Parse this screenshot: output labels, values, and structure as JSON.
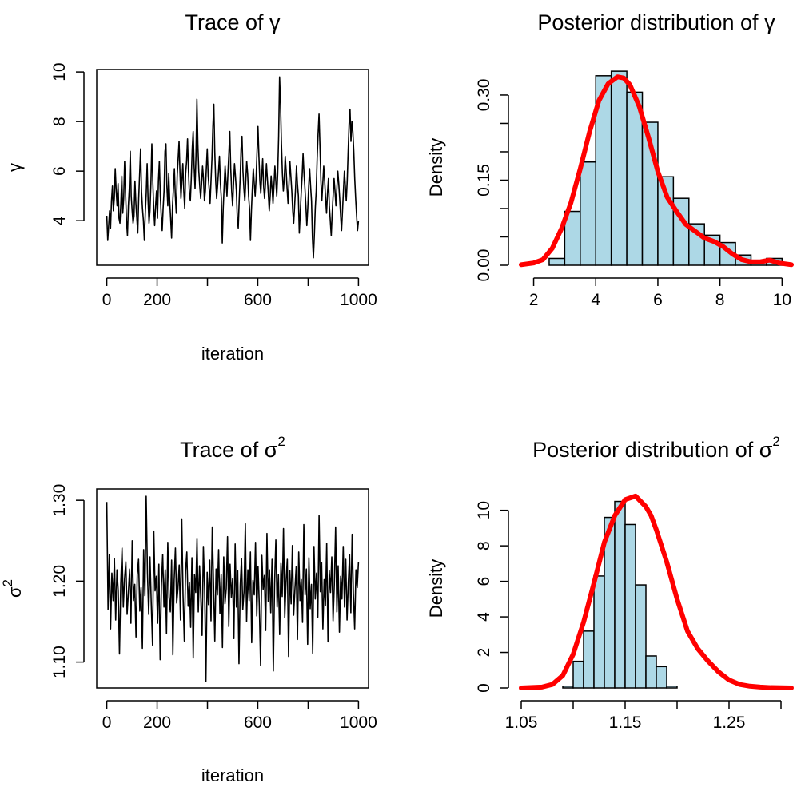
{
  "chart_data": [
    {
      "id": "trace-gamma",
      "type": "line",
      "title": "Trace of ",
      "title_symbol": "γ",
      "title_sup": "",
      "xlabel": "iteration",
      "ylabel": "γ",
      "ylabel_sup": "",
      "xlim": [
        -40,
        1040
      ],
      "ylim": [
        2.2,
        10.1
      ],
      "xticks": [
        0,
        200,
        400,
        600,
        800,
        1000
      ],
      "xtick_labels": [
        "0",
        "200",
        "",
        "600",
        "",
        "1000"
      ],
      "yticks": [
        4,
        6,
        8,
        10
      ],
      "ytick_labels": [
        "4",
        "6",
        "8",
        "10"
      ],
      "line_color": "#000000",
      "series": [
        {
          "values": [
            4.2,
            3.2,
            3.8,
            4.4,
            3.7,
            4.8,
            5.4,
            4.4,
            4.9,
            6.1,
            5.2,
            4.6,
            5.5,
            4.1,
            3.9,
            4.7,
            5.8,
            4.3,
            4.9,
            6.4,
            5.1,
            4.0,
            3.4,
            4.6,
            5.3,
            6.8,
            5.0,
            4.4,
            3.9,
            4.2,
            5.6,
            4.7,
            4.1,
            3.5,
            4.9,
            5.9,
            6.9,
            5.2,
            4.5,
            4.0,
            3.2,
            4.3,
            5.1,
            6.3,
            4.8,
            3.9,
            4.4,
            5.5,
            7.1,
            5.6,
            4.5,
            3.8,
            4.6,
            5.2,
            4.1,
            5.6,
            6.4,
            5.0,
            4.2,
            3.6,
            4.5,
            5.2,
            6.8,
            7.1,
            5.4,
            4.6,
            5.9,
            4.8,
            4.1,
            3.3,
            4.6,
            5.3,
            6.1,
            5.0,
            4.3,
            5.8,
            6.5,
            7.2,
            5.9,
            4.9,
            5.6,
            6.3,
            5.2,
            4.5,
            5.9,
            6.4,
            7.3,
            6.0,
            5.1,
            4.8,
            5.7,
            6.9,
            7.6,
            6.2,
            5.3,
            6.6,
            8.9,
            7.1,
            6.0,
            5.4,
            4.9,
            5.5,
            6.2,
            5.7,
            4.8,
            5.2,
            6.1,
            6.9,
            5.8,
            5.3,
            4.7,
            5.6,
            6.5,
            7.8,
            8.7,
            6.8,
            5.6,
            4.9,
            5.4,
            6.0,
            6.6,
            5.5,
            4.9,
            3.1,
            4.5,
            5.4,
            6.2,
            5.6,
            5.0,
            5.9,
            6.7,
            7.6,
            6.1,
            5.2,
            4.6,
            5.5,
            6.3,
            5.8,
            5.2,
            4.1,
            3.7,
            4.8,
            5.7,
            6.9,
            7.4,
            6.0,
            5.3,
            4.8,
            5.6,
            6.4,
            5.9,
            5.0,
            4.5,
            3.2,
            4.4,
            5.3,
            6.1,
            5.5,
            5.0,
            5.7,
            6.8,
            7.8,
            6.6,
            5.6,
            5.1,
            5.8,
            6.5,
            5.4,
            4.9,
            5.5,
            6.3,
            5.7,
            5.1,
            4.4,
            5.0,
            5.8,
            5.3,
            4.7,
            5.4,
            6.2,
            5.6,
            5.0,
            5.9,
            7.4,
            9.8,
            8.7,
            7.1,
            5.9,
            5.2,
            5.7,
            6.6,
            6.0,
            5.3,
            4.7,
            5.5,
            6.4,
            5.8,
            5.2,
            4.4,
            3.9,
            4.6,
            5.3,
            6.2,
            5.5,
            5.0,
            3.5,
            4.3,
            5.1,
            5.8,
            6.7,
            5.9,
            5.3,
            4.6,
            3.8,
            4.5,
            5.4,
            6.1,
            5.4,
            4.8,
            3.3,
            2.5,
            3.4,
            4.5,
            5.2,
            6.5,
            7.5,
            8.3,
            7.0,
            5.6,
            4.8,
            5.5,
            6.2,
            5.6,
            4.9,
            4.3,
            5.1,
            5.7,
            4.6,
            4.0,
            3.4,
            4.3,
            5.0,
            5.7,
            5.2,
            4.6,
            5.3,
            6.0,
            5.5,
            4.9,
            4.2,
            3.6,
            4.4,
            5.2,
            6.0,
            5.4,
            4.8,
            5.6,
            6.8,
            7.9,
            8.5,
            7.2,
            8.0,
            7.6,
            6.8,
            5.7,
            4.9,
            4.2,
            3.6,
            4.0
          ]
        }
      ]
    },
    {
      "id": "posterior-gamma",
      "type": "bar",
      "title": "Posterior distribution of ",
      "title_symbol": "γ",
      "title_sup": "",
      "xlabel": "",
      "ylabel": "Density",
      "xlim": [
        1.6,
        10.3
      ],
      "ylim": [
        0,
        0.345
      ],
      "xticks": [
        2,
        4,
        6,
        8,
        10
      ],
      "xtick_labels": [
        "2",
        "4",
        "6",
        "8",
        "10"
      ],
      "yticks": [
        0,
        0.05,
        0.1,
        0.15,
        0.2,
        0.25,
        0.3
      ],
      "ytick_labels": [
        "0.00",
        "",
        "",
        "0.15",
        "",
        "",
        "0.30"
      ],
      "bar_fill": "#add8e6",
      "curve_color": "#ff0000",
      "bins": [
        {
          "x0": 2.5,
          "x1": 3.0,
          "density": 0.012
        },
        {
          "x0": 3.0,
          "x1": 3.5,
          "density": 0.095
        },
        {
          "x0": 3.5,
          "x1": 4.0,
          "density": 0.182
        },
        {
          "x0": 4.0,
          "x1": 4.5,
          "density": 0.334
        },
        {
          "x0": 4.5,
          "x1": 5.0,
          "density": 0.342
        },
        {
          "x0": 5.0,
          "x1": 5.5,
          "density": 0.305
        },
        {
          "x0": 5.5,
          "x1": 6.0,
          "density": 0.252
        },
        {
          "x0": 6.0,
          "x1": 6.5,
          "density": 0.156
        },
        {
          "x0": 6.5,
          "x1": 7.0,
          "density": 0.118
        },
        {
          "x0": 7.0,
          "x1": 7.5,
          "density": 0.073
        },
        {
          "x0": 7.5,
          "x1": 8.0,
          "density": 0.053
        },
        {
          "x0": 8.0,
          "x1": 8.5,
          "density": 0.04
        },
        {
          "x0": 8.5,
          "x1": 9.0,
          "density": 0.018
        },
        {
          "x0": 9.0,
          "x1": 9.5,
          "density": 0.005
        },
        {
          "x0": 9.5,
          "x1": 10.0,
          "density": 0.012
        }
      ],
      "density_curve": {
        "x": [
          1.6,
          2.0,
          2.3,
          2.6,
          2.9,
          3.2,
          3.5,
          3.8,
          4.1,
          4.4,
          4.7,
          4.9,
          5.1,
          5.4,
          5.7,
          6.0,
          6.3,
          6.6,
          6.9,
          7.2,
          7.5,
          7.8,
          8.1,
          8.4,
          8.7,
          9.0,
          9.3,
          9.6,
          9.9,
          10.3
        ],
        "y": [
          0.001,
          0.004,
          0.01,
          0.03,
          0.065,
          0.11,
          0.17,
          0.235,
          0.29,
          0.32,
          0.332,
          0.33,
          0.318,
          0.28,
          0.225,
          0.165,
          0.12,
          0.095,
          0.072,
          0.06,
          0.048,
          0.042,
          0.033,
          0.02,
          0.01,
          0.006,
          0.006,
          0.009,
          0.004,
          0.001
        ]
      }
    },
    {
      "id": "trace-sigma2",
      "type": "line",
      "title": "Trace of ",
      "title_symbol": "σ",
      "title_sup": "2",
      "xlabel": "iteration",
      "ylabel": "σ",
      "ylabel_sup": "2",
      "xlim": [
        -40,
        1040
      ],
      "ylim": [
        1.068,
        1.314
      ],
      "xticks": [
        0,
        200,
        400,
        600,
        800,
        1000
      ],
      "xtick_labels": [
        "0",
        "200",
        "",
        "600",
        "",
        "1000"
      ],
      "yticks": [
        1.1,
        1.2,
        1.3
      ],
      "ytick_labels": [
        "1.10",
        "1.20",
        "1.30"
      ],
      "line_color": "#000000",
      "series": [
        {
          "values": [
            1.298,
            1.165,
            1.233,
            1.141,
            1.21,
            1.176,
            1.228,
            1.152,
            1.214,
            1.188,
            1.11,
            1.197,
            1.241,
            1.168,
            1.203,
            1.224,
            1.159,
            1.186,
            1.215,
            1.148,
            1.25,
            1.176,
            1.196,
            1.131,
            1.208,
            1.227,
            1.163,
            1.192,
            1.117,
            1.239,
            1.182,
            1.305,
            1.21,
            1.159,
            1.23,
            1.172,
            1.121,
            1.262,
            1.188,
            1.206,
            1.148,
            1.221,
            1.103,
            1.195,
            1.233,
            1.168,
            1.214,
            1.135,
            1.248,
            1.18,
            1.162,
            1.226,
            1.109,
            1.201,
            1.241,
            1.173,
            1.191,
            1.22,
            1.152,
            1.277,
            1.183,
            1.126,
            1.212,
            1.236,
            1.169,
            1.198,
            1.143,
            1.229,
            1.105,
            1.208,
            1.186,
            1.253,
            1.162,
            1.219,
            1.178,
            1.133,
            1.243,
            1.19,
            1.076,
            1.211,
            1.171,
            1.226,
            1.151,
            1.267,
            1.196,
            1.126,
            1.215,
            1.183,
            1.239,
            1.16,
            1.208,
            1.118,
            1.23,
            1.172,
            1.191,
            1.255,
            1.144,
            1.221,
            1.18,
            1.203,
            1.129,
            1.246,
            1.168,
            1.213,
            1.098,
            1.195,
            1.228,
            1.165,
            1.188,
            1.271,
            1.15,
            1.214,
            1.176,
            1.236,
            1.124,
            1.201,
            1.183,
            1.248,
            1.157,
            1.218,
            1.17,
            1.096,
            1.232,
            1.19,
            1.207,
            1.139,
            1.259,
            1.175,
            1.214,
            1.161,
            1.227,
            1.089,
            1.196,
            1.251,
            1.168,
            1.208,
            1.134,
            1.222,
            1.181,
            1.265,
            1.155,
            1.199,
            1.227,
            1.107,
            1.213,
            1.172,
            1.244,
            1.158,
            1.19,
            1.218,
            1.128,
            1.236,
            1.176,
            1.202,
            1.149,
            1.27,
            1.183,
            1.215,
            1.122,
            1.229,
            1.166,
            1.196,
            1.111,
            1.243,
            1.178,
            1.21,
            1.155,
            1.281,
            1.187,
            1.223,
            1.141,
            1.202,
            1.17,
            1.247,
            1.125,
            1.213,
            1.186,
            1.23,
            1.151,
            1.196,
            1.267,
            1.162,
            1.219,
            1.137,
            1.206,
            1.178,
            1.243,
            1.168,
            1.227,
            1.152,
            1.198,
            1.233,
            1.161,
            1.258,
            1.184,
            1.141,
            1.214,
            1.192,
            1.224
          ]
        }
      ]
    },
    {
      "id": "posterior-sigma2",
      "type": "bar",
      "title": "Posterior distribution of ",
      "title_symbol": "σ",
      "title_sup": "2",
      "xlabel": "",
      "ylabel": "Density",
      "xlim": [
        1.05,
        1.31
      ],
      "ylim": [
        0,
        11.2
      ],
      "xticks": [
        1.05,
        1.1,
        1.15,
        1.2,
        1.25,
        1.3
      ],
      "xtick_labels": [
        "1.05",
        "",
        "1.15",
        "",
        "1.25",
        ""
      ],
      "yticks": [
        0,
        2,
        4,
        6,
        8,
        10
      ],
      "ytick_labels": [
        "0",
        "2",
        "4",
        "6",
        "8",
        "10"
      ],
      "bar_fill": "#add8e6",
      "curve_color": "#ff0000",
      "bins": [
        {
          "x0": 1.09,
          "x1": 1.1,
          "density": 0.1
        },
        {
          "x0": 1.1,
          "x1": 1.11,
          "density": 1.5
        },
        {
          "x0": 1.11,
          "x1": 1.12,
          "density": 3.2
        },
        {
          "x0": 1.12,
          "x1": 1.13,
          "density": 6.3
        },
        {
          "x0": 1.13,
          "x1": 1.14,
          "density": 9.6
        },
        {
          "x0": 1.14,
          "x1": 1.15,
          "density": 10.5
        },
        {
          "x0": 1.15,
          "x1": 1.16,
          "density": 9.2
        },
        {
          "x0": 1.16,
          "x1": 1.17,
          "density": 5.8
        },
        {
          "x0": 1.17,
          "x1": 1.18,
          "density": 1.8
        },
        {
          "x0": 1.18,
          "x1": 1.19,
          "density": 1.2
        },
        {
          "x0": 1.19,
          "x1": 1.2,
          "density": 0.1
        }
      ],
      "density_curve": {
        "x": [
          1.05,
          1.07,
          1.08,
          1.09,
          1.1,
          1.11,
          1.12,
          1.13,
          1.14,
          1.15,
          1.16,
          1.17,
          1.175,
          1.18,
          1.19,
          1.2,
          1.21,
          1.22,
          1.23,
          1.24,
          1.25,
          1.26,
          1.27,
          1.28,
          1.29,
          1.31
        ],
        "y": [
          0.0,
          0.05,
          0.2,
          0.7,
          1.9,
          3.7,
          5.9,
          8.2,
          9.7,
          10.6,
          10.8,
          10.2,
          9.7,
          8.9,
          7.1,
          5.0,
          3.2,
          2.2,
          1.5,
          0.9,
          0.45,
          0.2,
          0.1,
          0.05,
          0.02,
          0.0
        ]
      }
    }
  ]
}
